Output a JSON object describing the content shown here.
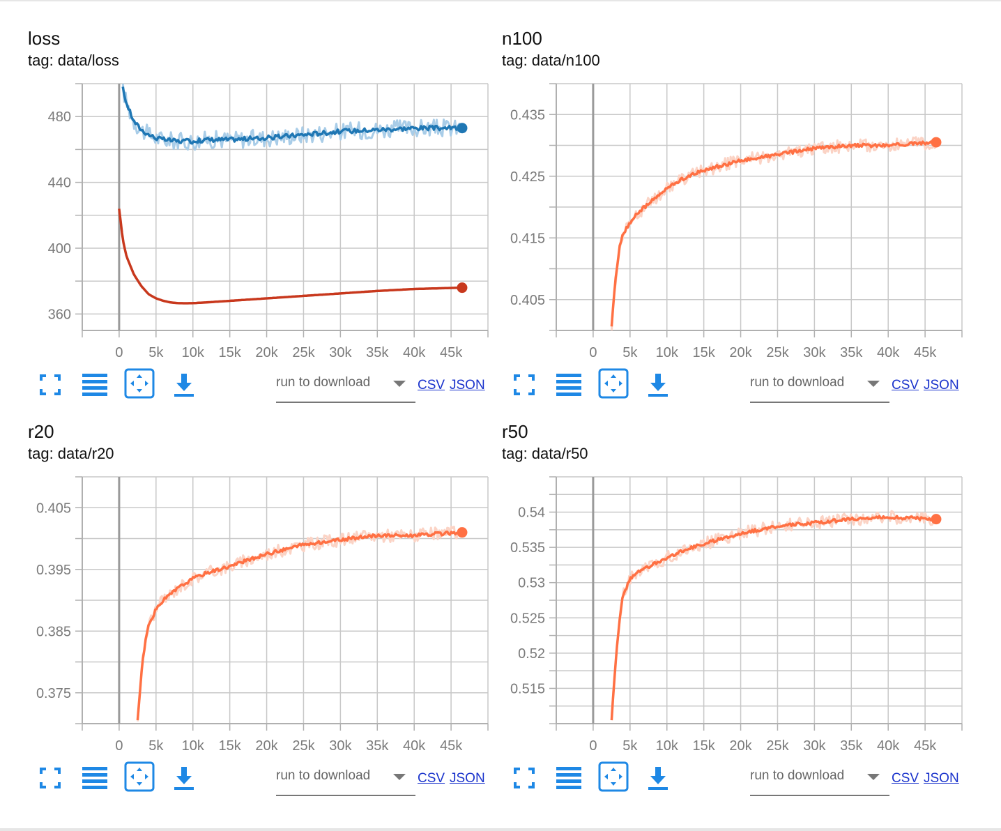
{
  "cards": [
    {
      "title": "loss",
      "tag": "tag: data/loss",
      "run_placeholder": "run to download",
      "csv_label": "CSV",
      "json_label": "JSON"
    },
    {
      "title": "n100",
      "tag": "tag: data/n100",
      "run_placeholder": "run to download",
      "csv_label": "CSV",
      "json_label": "JSON"
    },
    {
      "title": "r20",
      "tag": "tag: data/r20",
      "run_placeholder": "run to download",
      "csv_label": "CSV",
      "json_label": "JSON"
    },
    {
      "title": "r50",
      "tag": "tag: data/r50",
      "run_placeholder": "run to download",
      "csv_label": "CSV",
      "json_label": "JSON"
    }
  ],
  "icons": [
    "fullscreen-icon",
    "data-list-icon",
    "fit-domain-icon",
    "download-icon"
  ],
  "accent_color": "#1e88e5",
  "chart_data": [
    {
      "type": "line",
      "title": "loss",
      "xlim": [
        -5000,
        50000
      ],
      "ylim": [
        350,
        500
      ],
      "xticks": [
        0,
        5000,
        10000,
        15000,
        20000,
        25000,
        30000,
        35000,
        40000,
        45000
      ],
      "xtick_labels": [
        "0",
        "5k",
        "10k",
        "15k",
        "20k",
        "25k",
        "30k",
        "35k",
        "40k",
        "45k"
      ],
      "yticks": [
        360,
        400,
        440,
        480
      ],
      "ytick_labels": [
        "360",
        "400",
        "440",
        "480"
      ],
      "grid": true,
      "series": [
        {
          "color": "#1f77b4",
          "raw_color": "#a9cde8",
          "noise": 3,
          "x": [
            500,
            1000,
            2000,
            3000,
            4000,
            5000,
            6000,
            8000,
            10000,
            12000,
            15000,
            20000,
            25000,
            30000,
            35000,
            40000,
            46500
          ],
          "y": [
            497,
            488,
            477,
            472,
            469,
            467,
            466,
            465,
            465,
            466,
            466,
            467,
            469,
            471,
            472,
            473,
            473
          ]
        },
        {
          "color": "#c8381d",
          "raw_color": "#f5c6bd",
          "noise": 0,
          "x": [
            0,
            500,
            1000,
            2000,
            3000,
            4000,
            5000,
            6000,
            7000,
            8000,
            9000,
            10000,
            12000,
            15000,
            20000,
            25000,
            30000,
            35000,
            40000,
            46500
          ],
          "y": [
            424,
            405,
            395,
            384,
            377,
            372,
            369.5,
            368,
            367,
            366.6,
            366.5,
            366.6,
            367.1,
            368,
            369.5,
            371,
            372.5,
            374,
            375.2,
            376
          ]
        }
      ]
    },
    {
      "type": "line",
      "title": "n100",
      "xlim": [
        -5000,
        50000
      ],
      "ylim": [
        0.4,
        0.44
      ],
      "xticks": [
        0,
        5000,
        10000,
        15000,
        20000,
        25000,
        30000,
        35000,
        40000,
        45000
      ],
      "xtick_labels": [
        "0",
        "5k",
        "10k",
        "15k",
        "20k",
        "25k",
        "30k",
        "35k",
        "40k",
        "45k"
      ],
      "yticks": [
        0.405,
        0.415,
        0.425,
        0.435
      ],
      "ytick_labels": [
        "0.405",
        "0.415",
        "0.425",
        "0.435"
      ],
      "grid": true,
      "series": [
        {
          "color": "#ff7043",
          "raw_color": "#fbd3c5",
          "noise": 0.0006,
          "x": [
            2500,
            3000,
            3500,
            4000,
            5000,
            6000,
            8000,
            10000,
            12000,
            15000,
            20000,
            25000,
            30000,
            35000,
            40000,
            46500
          ],
          "y": [
            0.4005,
            0.408,
            0.413,
            0.4155,
            0.4175,
            0.419,
            0.421,
            0.423,
            0.4245,
            0.426,
            0.4275,
            0.4285,
            0.4295,
            0.43,
            0.43,
            0.4305
          ]
        }
      ]
    },
    {
      "type": "line",
      "title": "r20",
      "xlim": [
        -5000,
        50000
      ],
      "ylim": [
        0.37,
        0.41
      ],
      "xticks": [
        0,
        5000,
        10000,
        15000,
        20000,
        25000,
        30000,
        35000,
        40000,
        45000
      ],
      "xtick_labels": [
        "0",
        "5k",
        "10k",
        "15k",
        "20k",
        "25k",
        "30k",
        "35k",
        "40k",
        "45k"
      ],
      "yticks": [
        0.375,
        0.385,
        0.395,
        0.405
      ],
      "ytick_labels": [
        "0.375",
        "0.385",
        "0.395",
        "0.405"
      ],
      "grid": true,
      "series": [
        {
          "color": "#ff7043",
          "raw_color": "#fbd3c5",
          "noise": 0.0006,
          "x": [
            2500,
            3000,
            3500,
            4000,
            5000,
            6000,
            8000,
            10000,
            12000,
            15000,
            20000,
            25000,
            30000,
            35000,
            40000,
            46500
          ],
          "y": [
            0.3705,
            0.378,
            0.383,
            0.386,
            0.3885,
            0.39,
            0.392,
            0.3935,
            0.3945,
            0.3955,
            0.3975,
            0.399,
            0.3998,
            0.4005,
            0.4005,
            0.401
          ]
        }
      ]
    },
    {
      "type": "line",
      "title": "r50",
      "xlim": [
        -5000,
        50000
      ],
      "ylim": [
        0.51,
        0.545
      ],
      "xticks": [
        0,
        5000,
        10000,
        15000,
        20000,
        25000,
        30000,
        35000,
        40000,
        45000
      ],
      "xtick_labels": [
        "0",
        "5k",
        "10k",
        "15k",
        "20k",
        "25k",
        "30k",
        "35k",
        "40k",
        "45k"
      ],
      "yticks": [
        0.515,
        0.52,
        0.525,
        0.53,
        0.535,
        0.54
      ],
      "ytick_labels": [
        "0.515",
        "0.52",
        "0.525",
        "0.53",
        "0.535",
        "0.54"
      ],
      "grid": true,
      "series": [
        {
          "color": "#ff7043",
          "raw_color": "#fbd3c5",
          "noise": 0.0005,
          "x": [
            2500,
            3000,
            3500,
            4000,
            5000,
            6000,
            8000,
            10000,
            12000,
            15000,
            20000,
            25000,
            30000,
            35000,
            40000,
            46500
          ],
          "y": [
            0.5105,
            0.518,
            0.524,
            0.528,
            0.5305,
            0.5315,
            0.5325,
            0.5335,
            0.5345,
            0.5355,
            0.537,
            0.538,
            0.5385,
            0.539,
            0.5393,
            0.539
          ]
        }
      ]
    }
  ]
}
